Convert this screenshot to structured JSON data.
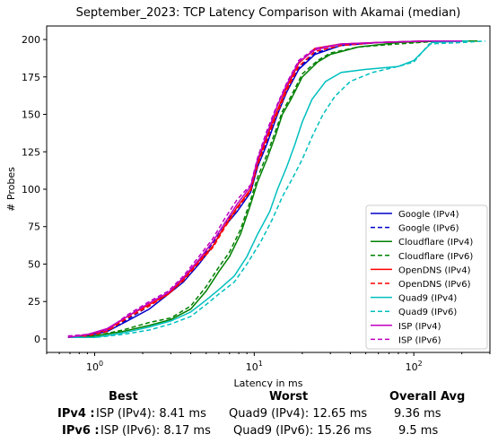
{
  "chart_data": {
    "type": "line",
    "title": "September_2023: TCP Latency Comparison with Akamai (median)",
    "xlabel": "Latency in ms",
    "ylabel": "# Probes",
    "xscale": "log",
    "xlim": [
      0.5,
      300
    ],
    "ylim": [
      -9,
      209
    ],
    "x_ticks": [
      {
        "value": 1,
        "label": "10^0"
      },
      {
        "value": 10,
        "label": "10^1"
      },
      {
        "value": 100,
        "label": "10^2"
      }
    ],
    "y_ticks": [
      0,
      25,
      50,
      75,
      100,
      125,
      150,
      175,
      200
    ],
    "legend_position": "lower-right",
    "series": [
      {
        "name": "Google (IPv4)",
        "color": "#0000cc",
        "dash": "solid",
        "points": [
          [
            0.68,
            1
          ],
          [
            0.9,
            2
          ],
          [
            1.2,
            5
          ],
          [
            1.6,
            12
          ],
          [
            2.2,
            20
          ],
          [
            2.9,
            30
          ],
          [
            3.6,
            38
          ],
          [
            4.5,
            50
          ],
          [
            5.5,
            62
          ],
          [
            6.5,
            75
          ],
          [
            7.8,
            85
          ],
          [
            9.5,
            98
          ],
          [
            10.5,
            115
          ],
          [
            12,
            130
          ],
          [
            14,
            150
          ],
          [
            16,
            165
          ],
          [
            19,
            180
          ],
          [
            24,
            190
          ],
          [
            35,
            196
          ],
          [
            60,
            198
          ],
          [
            120,
            199
          ],
          [
            200,
            199
          ]
        ]
      },
      {
        "name": "Google (IPv6)",
        "color": "#0000cc",
        "dash": "dashed",
        "points": [
          [
            0.68,
            1
          ],
          [
            0.9,
            2
          ],
          [
            1.2,
            5
          ],
          [
            1.6,
            13
          ],
          [
            2.2,
            22
          ],
          [
            2.9,
            31
          ],
          [
            3.6,
            40
          ],
          [
            4.5,
            52
          ],
          [
            5.5,
            64
          ],
          [
            6.5,
            77
          ],
          [
            7.8,
            87
          ],
          [
            9.5,
            100
          ],
          [
            10.5,
            117
          ],
          [
            12,
            132
          ],
          [
            14,
            152
          ],
          [
            16,
            166
          ],
          [
            19,
            181
          ],
          [
            24,
            191
          ],
          [
            35,
            196
          ],
          [
            60,
            198
          ],
          [
            120,
            199
          ],
          [
            200,
            199
          ]
        ]
      },
      {
        "name": "Cloudflare (IPv4)",
        "color": "#008000",
        "dash": "solid",
        "points": [
          [
            0.68,
            1
          ],
          [
            1.0,
            2
          ],
          [
            1.5,
            5
          ],
          [
            2.2,
            9
          ],
          [
            3.0,
            13
          ],
          [
            4.0,
            20
          ],
          [
            5.0,
            32
          ],
          [
            6.0,
            45
          ],
          [
            7.0,
            55
          ],
          [
            8.2,
            70
          ],
          [
            9.5,
            90
          ],
          [
            10.5,
            105
          ],
          [
            12,
            120
          ],
          [
            13.5,
            135
          ],
          [
            15,
            150
          ],
          [
            17,
            160
          ],
          [
            20,
            175
          ],
          [
            25,
            185
          ],
          [
            30,
            190
          ],
          [
            45,
            195
          ],
          [
            80,
            198
          ],
          [
            150,
            199
          ],
          [
            250,
            199
          ]
        ]
      },
      {
        "name": "Cloudflare (IPv6)",
        "color": "#008000",
        "dash": "dashed",
        "points": [
          [
            0.68,
            1
          ],
          [
            1.0,
            2
          ],
          [
            1.5,
            6
          ],
          [
            2.2,
            11
          ],
          [
            3.0,
            14
          ],
          [
            4.0,
            22
          ],
          [
            5.0,
            35
          ],
          [
            6.0,
            48
          ],
          [
            7.0,
            58
          ],
          [
            8.2,
            73
          ],
          [
            9.5,
            93
          ],
          [
            10.5,
            108
          ],
          [
            12,
            123
          ],
          [
            13.5,
            138
          ],
          [
            15,
            152
          ],
          [
            17,
            162
          ],
          [
            20,
            177
          ],
          [
            25,
            186
          ],
          [
            30,
            191
          ],
          [
            45,
            195
          ],
          [
            80,
            197
          ],
          [
            150,
            199
          ],
          [
            250,
            199
          ]
        ]
      },
      {
        "name": "OpenDNS (IPv4)",
        "color": "#ff0000",
        "dash": "solid",
        "points": [
          [
            0.68,
            1
          ],
          [
            0.9,
            3
          ],
          [
            1.2,
            6
          ],
          [
            1.6,
            15
          ],
          [
            2.2,
            23
          ],
          [
            2.9,
            30
          ],
          [
            3.6,
            40
          ],
          [
            4.5,
            52
          ],
          [
            5.5,
            62
          ],
          [
            6.5,
            75
          ],
          [
            7.8,
            88
          ],
          [
            9.5,
            100
          ],
          [
            10.5,
            118
          ],
          [
            12,
            135
          ],
          [
            14,
            153
          ],
          [
            16,
            168
          ],
          [
            19,
            184
          ],
          [
            24,
            194
          ],
          [
            35,
            197
          ],
          [
            60,
            198
          ],
          [
            120,
            199
          ],
          [
            200,
            199
          ]
        ]
      },
      {
        "name": "OpenDNS (IPv6)",
        "color": "#ff0000",
        "dash": "dashed",
        "points": [
          [
            0.68,
            1
          ],
          [
            0.9,
            2
          ],
          [
            1.2,
            5
          ],
          [
            1.6,
            14
          ],
          [
            2.2,
            22
          ],
          [
            2.9,
            30
          ],
          [
            3.6,
            39
          ],
          [
            4.5,
            51
          ],
          [
            5.5,
            61
          ],
          [
            6.5,
            74
          ],
          [
            7.8,
            87
          ],
          [
            9.5,
            99
          ],
          [
            10.5,
            116
          ],
          [
            12,
            133
          ],
          [
            14,
            151
          ],
          [
            16,
            166
          ],
          [
            19,
            182
          ],
          [
            24,
            192
          ],
          [
            35,
            196
          ],
          [
            60,
            198
          ],
          [
            120,
            199
          ],
          [
            200,
            199
          ]
        ]
      },
      {
        "name": "Quad9 (IPv4)",
        "color": "#00bfbf",
        "dash": "solid",
        "points": [
          [
            0.68,
            1
          ],
          [
            1.0,
            1
          ],
          [
            1.5,
            4
          ],
          [
            2.2,
            8
          ],
          [
            3.0,
            12
          ],
          [
            4.0,
            18
          ],
          [
            5.0,
            26
          ],
          [
            6.0,
            33
          ],
          [
            7.5,
            42
          ],
          [
            9.0,
            55
          ],
          [
            10.5,
            70
          ],
          [
            12.5,
            85
          ],
          [
            14,
            100
          ],
          [
            16,
            115
          ],
          [
            18,
            130
          ],
          [
            20,
            145
          ],
          [
            23,
            160
          ],
          [
            28,
            172
          ],
          [
            35,
            178
          ],
          [
            50,
            180
          ],
          [
            80,
            182
          ],
          [
            100,
            186
          ],
          [
            130,
            198
          ],
          [
            220,
            199
          ]
        ]
      },
      {
        "name": "Quad9 (IPv6)",
        "color": "#00bfbf",
        "dash": "dashed",
        "points": [
          [
            0.68,
            1
          ],
          [
            1.0,
            1
          ],
          [
            1.5,
            3
          ],
          [
            2.2,
            6
          ],
          [
            3.0,
            10
          ],
          [
            4.0,
            15
          ],
          [
            5.0,
            23
          ],
          [
            6.0,
            30
          ],
          [
            7.5,
            38
          ],
          [
            9.0,
            50
          ],
          [
            11,
            65
          ],
          [
            13,
            80
          ],
          [
            15,
            95
          ],
          [
            17.5,
            108
          ],
          [
            20,
            120
          ],
          [
            23,
            135
          ],
          [
            27,
            150
          ],
          [
            32,
            162
          ],
          [
            40,
            172
          ],
          [
            55,
            178
          ],
          [
            80,
            182
          ],
          [
            100,
            185
          ],
          [
            125,
            197
          ],
          [
            200,
            198
          ],
          [
            280,
            199
          ]
        ]
      },
      {
        "name": "ISP (IPv4)",
        "color": "#bf00bf",
        "dash": "solid",
        "points": [
          [
            0.68,
            1
          ],
          [
            0.9,
            3
          ],
          [
            1.2,
            7
          ],
          [
            1.6,
            15
          ],
          [
            2.2,
            24
          ],
          [
            2.9,
            31
          ],
          [
            3.6,
            41
          ],
          [
            4.5,
            53
          ],
          [
            5.5,
            65
          ],
          [
            6.5,
            77
          ],
          [
            7.8,
            90
          ],
          [
            9.5,
            102
          ],
          [
            10.5,
            120
          ],
          [
            12,
            137
          ],
          [
            14,
            156
          ],
          [
            16,
            170
          ],
          [
            19,
            185
          ],
          [
            24,
            193
          ],
          [
            35,
            197
          ],
          [
            60,
            198
          ],
          [
            120,
            199
          ],
          [
            200,
            199
          ]
        ]
      },
      {
        "name": "ISP (IPv6)",
        "color": "#bf00bf",
        "dash": "dashed",
        "points": [
          [
            0.68,
            2
          ],
          [
            0.9,
            3
          ],
          [
            1.2,
            6
          ],
          [
            1.6,
            16
          ],
          [
            2.2,
            25
          ],
          [
            2.9,
            32
          ],
          [
            3.6,
            42
          ],
          [
            4.5,
            55
          ],
          [
            5.5,
            67
          ],
          [
            6.5,
            80
          ],
          [
            7.8,
            93
          ],
          [
            9.5,
            103
          ],
          [
            10.5,
            121
          ],
          [
            12,
            139
          ],
          [
            14,
            157
          ],
          [
            16,
            171
          ],
          [
            19,
            186
          ],
          [
            24,
            194
          ],
          [
            35,
            197
          ],
          [
            60,
            198
          ],
          [
            120,
            199
          ],
          [
            200,
            199
          ]
        ]
      }
    ]
  },
  "stats": {
    "headers": {
      "best": "Best",
      "worst": "Worst",
      "avg": "Overall Avg"
    },
    "rows": [
      {
        "label": "IPv4 :",
        "best": "ISP (IPv4): 8.41 ms",
        "worst": "Quad9 (IPv4): 12.65 ms",
        "avg": "9.36 ms"
      },
      {
        "label": "IPv6 :",
        "best": "ISP (IPv6): 8.17 ms",
        "worst": "Quad9 (IPv6): 15.26 ms",
        "avg": "9.5 ms"
      }
    ]
  }
}
